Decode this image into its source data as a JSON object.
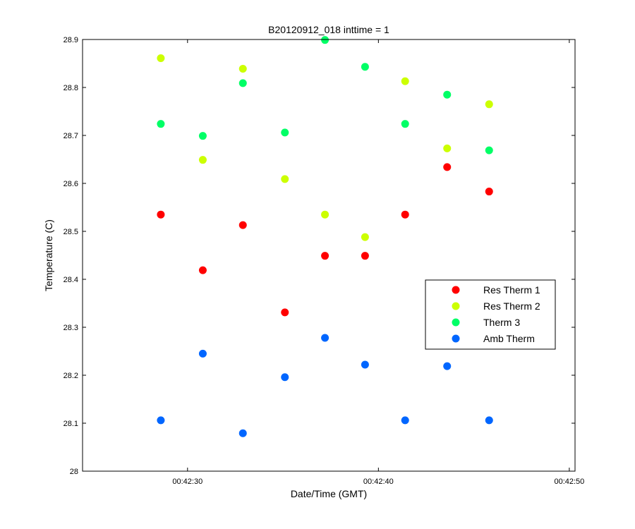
{
  "chart_data": {
    "type": "scatter",
    "title": "B20120912_018 inttime = 1",
    "xlabel": "Date/Time (GMT)",
    "ylabel": "Temperature (C)",
    "x_axis": "time",
    "xlim": [
      "00:42:24.5",
      "00:42:50.3"
    ],
    "ylim": [
      28,
      28.9
    ],
    "x_ticks": [
      "00:42:30",
      "00:42:40",
      "00:42:50"
    ],
    "y_ticks": [
      "28",
      "28.1",
      "28.2",
      "28.3",
      "28.4",
      "28.5",
      "28.6",
      "28.7",
      "28.8",
      "28.9"
    ],
    "grid": false,
    "legend_position": "right",
    "x": [
      "00:42:28.6",
      "00:42:30.8",
      "00:42:32.9",
      "00:42:35.1",
      "00:42:37.2",
      "00:42:39.3",
      "00:42:41.4",
      "00:42:43.6",
      "00:42:45.8"
    ],
    "series": [
      {
        "name": "Res Therm 1",
        "color": "#ff0000",
        "values": [
          28.535,
          28.419,
          28.513,
          28.331,
          28.449,
          28.449,
          28.535,
          28.634,
          28.583
        ]
      },
      {
        "name": "Res Therm 2",
        "color": "#ccff00",
        "values": [
          28.861,
          28.649,
          28.839,
          28.609,
          28.535,
          28.488,
          28.813,
          28.673,
          28.765
        ]
      },
      {
        "name": "Therm 3",
        "color": "#00ff66",
        "values": [
          28.724,
          28.699,
          28.809,
          28.706,
          28.899,
          28.843,
          28.724,
          28.785,
          28.669
        ]
      },
      {
        "name": "Amb Therm",
        "color": "#0066ff",
        "values": [
          28.106,
          28.245,
          28.079,
          28.196,
          28.278,
          28.222,
          28.106,
          28.219,
          28.106
        ]
      }
    ]
  }
}
